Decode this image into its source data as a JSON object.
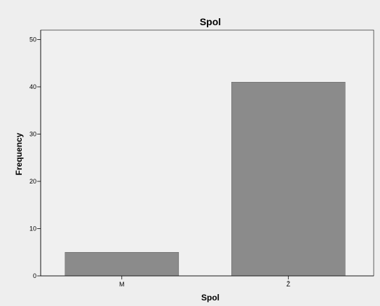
{
  "chart_data": {
    "type": "bar",
    "title": "Spol",
    "xlabel": "Spol",
    "ylabel": "Frequency",
    "categories": [
      "M",
      "Ž"
    ],
    "values": [
      5,
      41
    ],
    "ylim": [
      0,
      52
    ],
    "yticks": [
      0,
      10,
      20,
      30,
      40,
      50
    ],
    "grid": false,
    "legend": "none"
  },
  "colors": {
    "outer_background": "#eeeeee",
    "plot_background": "#f0f0f0",
    "bar_fill": "#8b8b8b",
    "axis": "#000000"
  }
}
